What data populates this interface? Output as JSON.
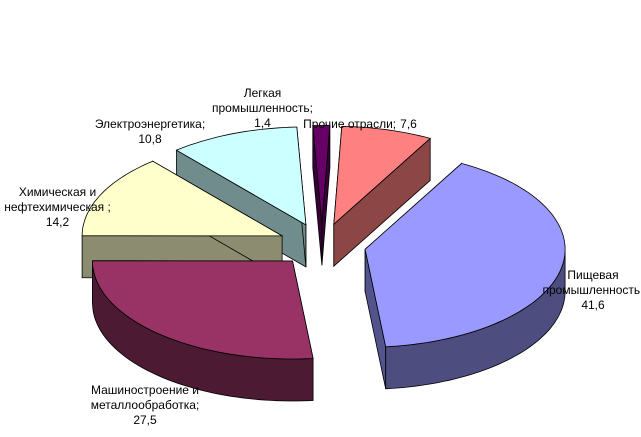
{
  "chart_data": {
    "type": "pie3d",
    "categories": [
      "Прочие отрасли;",
      "Пищевая промышленность;",
      "Машиностроение и металлообработка;",
      "Химическая и нефтехимическая ;",
      "Электроэнергетика;",
      "Легкая промышленность;"
    ],
    "values": [
      7.6,
      41.6,
      27.5,
      14.2,
      10.8,
      1.4
    ],
    "value_labels": [
      "7,6",
      "41,6",
      "27,5",
      "14,2",
      "10,8",
      "1,4"
    ],
    "colors": [
      "#ff8080",
      "#9999ff",
      "#993366",
      "#ffffcc",
      "#ccffff",
      "#660066"
    ]
  }
}
